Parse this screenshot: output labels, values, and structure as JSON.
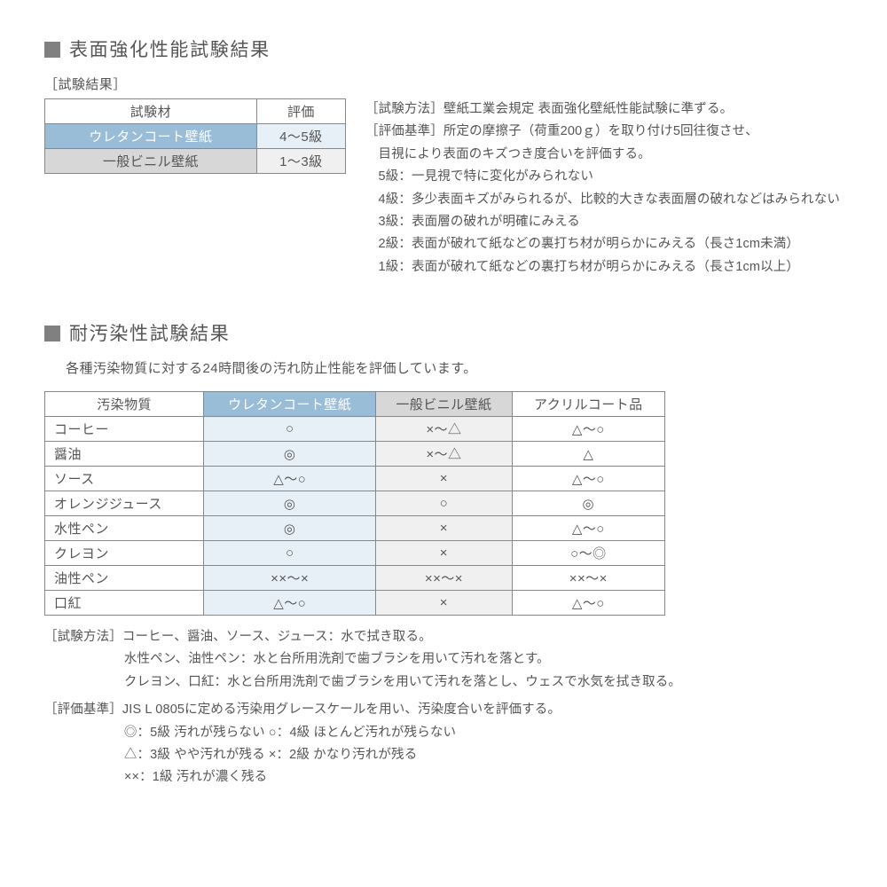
{
  "colors": {
    "blue_header": "#99bcd7",
    "lblue_cell": "#e8f0f7",
    "grey_header": "#d7d7d7",
    "lgrey_cell": "#f0f0f0",
    "border": "#888888",
    "text": "#555555",
    "sq": "#808080"
  },
  "section1": {
    "title": "表面強化性能試験結果",
    "sublabel": "［試験結果］",
    "table": {
      "columns": [
        "試験材",
        "評価"
      ],
      "rows": [
        {
          "material": "ウレタンコート壁紙",
          "rating": "4〜5級",
          "m_bg": "blue",
          "r_bg": "lblue"
        },
        {
          "material": "一般ビニル壁紙",
          "rating": "1〜3級",
          "m_bg": "grey",
          "r_bg": "lgrey"
        }
      ]
    },
    "method_label": "［試験方法］",
    "method_text": "壁紙工業会規定  表面強化壁紙性能試験に準ずる。",
    "criteria_label": "［評価基準］",
    "criteria_lead": "所定の摩擦子（荷重200ｇ）を取り付け5回往復させ、",
    "criteria_line2": "目視により表面のキズつき度合いを評価する。",
    "grades": [
      "5級：一見視で特に変化がみられない",
      "4級：多少表面キズがみられるが、比較的大きな表面層の破れなどはみられない",
      "3級：表面層の破れが明確にみえる",
      "2級：表面が破れて紙などの裏打ち材が明らかにみえる（長さ1cm未満）",
      "1級：表面が破れて紙などの裏打ち材が明らかにみえる（長さ1cm以上）"
    ]
  },
  "section2": {
    "title": "耐汚染性試験結果",
    "subtext": "各種汚染物質に対する24時間後の汚れ防止性能を評価しています。",
    "table": {
      "columns": [
        "汚染物質",
        "ウレタンコート壁紙",
        "一般ビニル壁紙",
        "アクリルコート品"
      ],
      "col_bg": [
        "",
        "blue",
        "grey",
        ""
      ],
      "body_bg": [
        "",
        "lblue",
        "lgrey",
        ""
      ],
      "rows": [
        [
          "コーヒー",
          "○",
          "×〜△",
          "△〜○"
        ],
        [
          "醤油",
          "◎",
          "×〜△",
          "△"
        ],
        [
          "ソース",
          "△〜○",
          "×",
          "△〜○"
        ],
        [
          "オレンジジュース",
          "◎",
          "○",
          "◎"
        ],
        [
          "水性ペン",
          "◎",
          "×",
          "△〜○"
        ],
        [
          "クレヨン",
          "○",
          "×",
          "○〜◎"
        ],
        [
          "油性ペン",
          "××〜×",
          "××〜×",
          "××〜×"
        ],
        [
          "口紅",
          "△〜○",
          "×",
          "△〜○"
        ]
      ]
    },
    "method_label": "［試験方法］",
    "method_lines": [
      "コーヒー、醤油、ソース、ジュース：水で拭き取る。",
      "水性ペン、油性ペン：水と台所用洗剤で歯ブラシを用いて汚れを落とす。",
      "クレヨン、口紅：水と台所用洗剤で歯ブラシを用いて汚れを落とし、ウェスで水気を拭き取る。"
    ],
    "criteria_label": "［評価基準］",
    "criteria_lines": [
      "JIS L 0805に定める汚染用グレースケールを用い、汚染度合いを評価する。",
      "◎：5級 汚れが残らない  ○：4級 ほとんど汚れが残らない",
      "△：3級 やや汚れが残る  ×：2級 かなり汚れが残る",
      "××：1級 汚れが濃く残る"
    ]
  }
}
